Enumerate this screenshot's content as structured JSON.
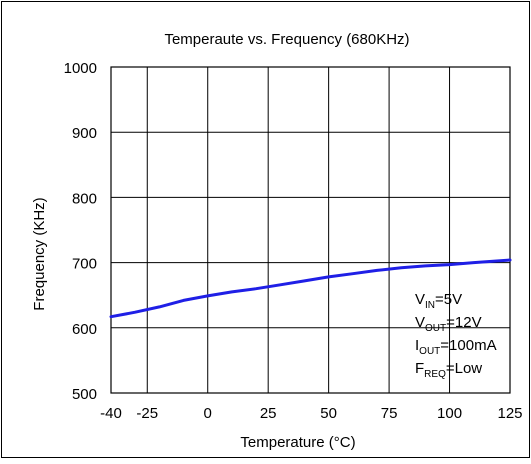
{
  "chart_data": {
    "type": "line",
    "title": "Temperaute vs. Frequency (680KHz)",
    "xlabel": "Temperature (°C)",
    "ylabel": "Frequency (KHz)",
    "xlim": [
      -40,
      125
    ],
    "ylim": [
      500,
      1000
    ],
    "x_ticks": [
      -40,
      -25,
      0,
      25,
      50,
      75,
      100,
      125
    ],
    "y_ticks": [
      500,
      600,
      700,
      800,
      900,
      1000
    ],
    "grid": true,
    "series": [
      {
        "color": "#1f1fe6",
        "x": [
          -40,
          -30,
          -20,
          -10,
          0,
          10,
          20,
          30,
          40,
          50,
          60,
          70,
          80,
          90,
          100,
          110,
          125
        ],
        "y": [
          617,
          624,
          632,
          642,
          649,
          655,
          660,
          666,
          672,
          678,
          683,
          688,
          692,
          695,
          697,
          700,
          704
        ]
      }
    ],
    "annotations": [
      {
        "main": "V",
        "sub": "IN",
        "rest": "=5V"
      },
      {
        "main": "V",
        "sub": "OUT",
        "rest": "=12V"
      },
      {
        "main": "I",
        "sub": "OUT",
        "rest": "=100mA"
      },
      {
        "main": "F",
        "sub": "REQ",
        "rest": "=Low"
      }
    ]
  }
}
